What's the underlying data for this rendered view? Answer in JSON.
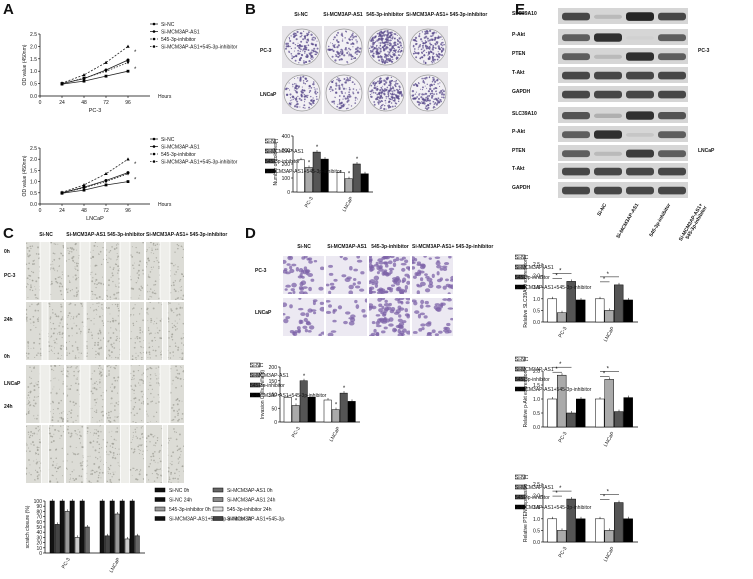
{
  "panels": {
    "A": {
      "label": "A",
      "top": {
        "ylabel": "OD value (450nm)",
        "xlabel": "Hours",
        "cell": "PC-3",
        "xticks": [
          "0",
          "24",
          "48",
          "72",
          "96"
        ],
        "yticks": [
          "0.0",
          "0.5",
          "1.0",
          "1.5",
          "2.0",
          "2.5"
        ]
      },
      "bottom": {
        "ylabel": "OD value (450nm)",
        "xlabel": "Hours",
        "cell": "LNCaP",
        "xticks": [
          "0",
          "24",
          "48",
          "72",
          "96"
        ],
        "yticks": [
          "0.0",
          "0.5",
          "1.0",
          "1.5",
          "2.0",
          "2.5"
        ]
      },
      "legend_top": [
        "Si-NC",
        "Si-MCM3AP-AS1",
        "545-3p-inhibitor",
        "Si-MCM3AP-AS1+545-3p-inhibitor"
      ],
      "legend_bottom": [
        "Si-NC",
        "Si-MCM3AP-AS1",
        "545-3p-inhibitor",
        "Si-MCM3AP-AS1+545-3p-inhibitor"
      ]
    },
    "B": {
      "label": "B",
      "cols": [
        "Si-NC",
        "Si-MCM3AP-AS1",
        "545-3p-inhibitor",
        "Si-MCM3AP-AS1+ 545-3p-inhibitor"
      ],
      "rows": [
        "PC-3",
        "LNCaP"
      ],
      "ylabel": "Number of colonies",
      "yticks": [
        "0",
        "100",
        "200",
        "300",
        "400"
      ],
      "legend": [
        "Si-NC",
        "Si-MCM3AP-AS1",
        "545-3p-inhibitor",
        "Si-MCM3AP-AS1+545-3p-inhibitor"
      ]
    },
    "C": {
      "label": "C",
      "cols": [
        "Si-NC",
        "Si-MCM3AP-AS1",
        "545-3p-inhibitor",
        "Si-MCM3AP-AS1+ 545-3p-inhibitor"
      ],
      "rows": [
        "0h",
        "PC-3",
        "24h",
        "0h",
        "LNCaP",
        "24h"
      ],
      "ylabel": "scratch closure (%)",
      "yticks": [
        "0",
        "10",
        "20",
        "30",
        "40",
        "50",
        "60",
        "70",
        "80",
        "90",
        "100"
      ],
      "legend": [
        "Si-NC 0h",
        "Si-MCM3AP-AS1 0h",
        "Si-NC 24h",
        "Si-MCM3AP-AS1 24h",
        "545-3p-inhibitor 0h",
        "545-3p-inhibitor 24h",
        "Si-MCM3AP-AS1+545-3p-inhibitor 0h",
        "Si-MCM3AP-AS1+545-3p-inhibitor 24h"
      ]
    },
    "D": {
      "label": "D",
      "cols": [
        "Si-NC",
        "Si-MCM3AP-AS1",
        "545-3p-inhibitor",
        "Si-MCM3AP-AS1+ 545-3p-inhibitor"
      ],
      "rows": [
        "PC-3",
        "LNCaP"
      ],
      "ylabel": "Invasion Cells (n/field)",
      "yticks": [
        "0",
        "50",
        "100",
        "150",
        "200"
      ],
      "legend": [
        "Si-NC",
        "Si-MCM3AP-AS1",
        "545-3p-inhibitor",
        "Si-MCM3AP-AS1+545-3p-inhibitor"
      ]
    },
    "E": {
      "label": "E",
      "blot_labels": [
        "SLC39A10",
        "P-Akt",
        "PTEN",
        "T-Akt",
        "GAPDH",
        "SLC39A10",
        "P-Akt",
        "PTEN",
        "T-Akt",
        "GAPDH"
      ],
      "cell_labels": [
        "PC-3",
        "LNCaP"
      ],
      "lanes": [
        "Si-NC",
        "Si-MCM3AP-AS1",
        "545-3p-inhibitor",
        "Si-MCM3AP-AS1+ 545-3p-inhibitor"
      ],
      "charts": [
        {
          "ylabel": "Relative SLC39A10 expression",
          "yticks": [
            "0.0",
            "0.5",
            "1.0",
            "1.5",
            "2.0",
            "2.5"
          ],
          "legend": [
            "Si-NC",
            "Si-MCM3AP-AS1",
            "545-3p-inhibitor",
            "Si-MCM3AP-AS1+545-3p-inhibitor"
          ]
        },
        {
          "ylabel": "Relative p-Akt expression",
          "yticks": [
            "0.0",
            "0.5",
            "1.0",
            "1.5",
            "2.0"
          ],
          "legend": [
            "Si-NC",
            "Si-MCM3AP-AS1",
            "545-3p-inhibitor",
            "Si-MCM3AP-AS1+545-3p-inhibitor"
          ]
        },
        {
          "ylabel": "Relative PTEN expression",
          "yticks": [
            "0.0",
            "0.5",
            "1.0",
            "1.5",
            "2.0",
            "2.5"
          ],
          "legend": [
            "Si-NC",
            "Si-MCM3AP-AS1",
            "545-3p-inhibitor",
            "Si-MCM3AP-AS1+545-3p-inhibitor"
          ]
        }
      ]
    },
    "categories": [
      "PC-3",
      "LNCaP"
    ],
    "star": "*"
  },
  "colors": {
    "si_nc": "#ffffff",
    "si_mcm": "#aaaaaa",
    "inhib": "#555555",
    "combo": "#000000",
    "colony": "#5a4b8c",
    "cell": "#7d63a8"
  },
  "chart_data": [
    {
      "type": "line",
      "title": "",
      "xlabel": "Hours",
      "ylabel": "OD value (450nm)",
      "x": [
        24,
        48,
        72,
        96
      ],
      "ylim": [
        0,
        2.5
      ],
      "series": [
        {
          "name": "Si-NC",
          "values": [
            0.5,
            0.7,
            1.05,
            1.45
          ]
        },
        {
          "name": "Si-MCM3AP-AS1",
          "values": [
            0.48,
            0.6,
            0.8,
            1.0
          ]
        },
        {
          "name": "545-3p-inhibitor",
          "values": [
            0.52,
            0.85,
            1.35,
            2.0
          ]
        },
        {
          "name": "Si-MCM3AP-AS1+545-3p-inhibitor",
          "values": [
            0.5,
            0.72,
            1.0,
            1.35
          ]
        }
      ]
    },
    {
      "type": "line",
      "title": "",
      "xlabel": "Hours",
      "ylabel": "OD value (450nm)",
      "x": [
        24,
        48,
        72,
        96
      ],
      "ylim": [
        0,
        2.5
      ],
      "series": [
        {
          "name": "Si-NC",
          "values": [
            0.5,
            0.75,
            1.05,
            1.4
          ]
        },
        {
          "name": "Si-MCM3AP-AS1",
          "values": [
            0.48,
            0.62,
            0.85,
            1.0
          ]
        },
        {
          "name": "545-3p-inhibitor",
          "values": [
            0.52,
            0.85,
            1.35,
            2.0
          ]
        },
        {
          "name": "Si-MCM3AP-AS1+545-3p-inhibitor",
          "values": [
            0.5,
            0.72,
            1.0,
            1.35
          ]
        }
      ]
    },
    {
      "type": "bar",
      "ylabel": "Number of colonies",
      "categories": [
        "PC-3",
        "LNCaP"
      ],
      "ylim": [
        0,
        400
      ],
      "series": [
        {
          "name": "Si-NC",
          "values": [
            230,
            140
          ]
        },
        {
          "name": "Si-MCM3AP-AS1",
          "values": [
            175,
            95
          ]
        },
        {
          "name": "545-3p-inhibitor",
          "values": [
            285,
            200
          ]
        },
        {
          "name": "Si-MCM3AP-AS1+545-3p-inhibitor",
          "values": [
            235,
            130
          ]
        }
      ]
    },
    {
      "type": "bar",
      "ylabel": "scratch closure (%)",
      "categories": [
        "PC-3",
        "LNCaP"
      ],
      "ylim": [
        0,
        100
      ],
      "series": [
        {
          "name": "Si-NC 0h",
          "values": [
            100,
            100
          ]
        },
        {
          "name": "Si-NC 24h",
          "values": [
            55,
            33
          ]
        },
        {
          "name": "Si-MCM3AP-AS1 0h",
          "values": [
            100,
            100
          ]
        },
        {
          "name": "Si-MCM3AP-AS1 24h",
          "values": [
            80,
            75
          ]
        },
        {
          "name": "545-3p-inhibitor 0h",
          "values": [
            100,
            100
          ]
        },
        {
          "name": "545-3p-inhibitor 24h",
          "values": [
            30,
            27
          ]
        },
        {
          "name": "Si-MCM3AP-AS1+545-3p-inhibitor 0h",
          "values": [
            100,
            100
          ]
        },
        {
          "name": "Si-MCM3AP-AS1+545-3p-inhibitor 24h",
          "values": [
            50,
            33
          ]
        }
      ]
    },
    {
      "type": "bar",
      "ylabel": "Invasion Cells (n/field)",
      "categories": [
        "PC-3",
        "LNCaP"
      ],
      "ylim": [
        0,
        200
      ],
      "series": [
        {
          "name": "Si-NC",
          "values": [
            90,
            80
          ]
        },
        {
          "name": "Si-MCM3AP-AS1",
          "values": [
            60,
            45
          ]
        },
        {
          "name": "545-3p-inhibitor",
          "values": [
            150,
            105
          ]
        },
        {
          "name": "Si-MCM3AP-AS1+545-3p-inhibitor",
          "values": [
            90,
            75
          ]
        }
      ]
    },
    {
      "type": "bar",
      "ylabel": "Relative SLC39A10 expression",
      "categories": [
        "PC-3",
        "LNCaP"
      ],
      "ylim": [
        0,
        2.5
      ],
      "series": [
        {
          "name": "Si-NC",
          "values": [
            1.0,
            1.0
          ]
        },
        {
          "name": "Si-MCM3AP-AS1",
          "values": [
            0.4,
            0.5
          ]
        },
        {
          "name": "545-3p-inhibitor",
          "values": [
            1.75,
            1.6
          ]
        },
        {
          "name": "Si-MCM3AP-AS1+545-3p-inhibitor",
          "values": [
            0.95,
            0.95
          ]
        }
      ]
    },
    {
      "type": "bar",
      "ylabel": "Relative p-Akt expression",
      "categories": [
        "PC-3",
        "LNCaP"
      ],
      "ylim": [
        0,
        2.0
      ],
      "series": [
        {
          "name": "Si-NC",
          "values": [
            1.0,
            1.0
          ]
        },
        {
          "name": "Si-MCM3AP-AS1",
          "values": [
            1.85,
            1.7
          ]
        },
        {
          "name": "545-3p-inhibitor",
          "values": [
            0.5,
            0.55
          ]
        },
        {
          "name": "Si-MCM3AP-AS1+545-3p-inhibitor",
          "values": [
            1.0,
            1.05
          ]
        }
      ]
    },
    {
      "type": "bar",
      "ylabel": "Relative PTEN expression",
      "categories": [
        "PC-3",
        "LNCaP"
      ],
      "ylim": [
        0,
        2.5
      ],
      "series": [
        {
          "name": "Si-NC",
          "values": [
            1.0,
            1.0
          ]
        },
        {
          "name": "Si-MCM3AP-AS1",
          "values": [
            0.5,
            0.5
          ]
        },
        {
          "name": "545-3p-inhibitor",
          "values": [
            1.85,
            1.7
          ]
        },
        {
          "name": "Si-MCM3AP-AS1+545-3p-inhibitor",
          "values": [
            1.0,
            1.0
          ]
        }
      ]
    }
  ]
}
